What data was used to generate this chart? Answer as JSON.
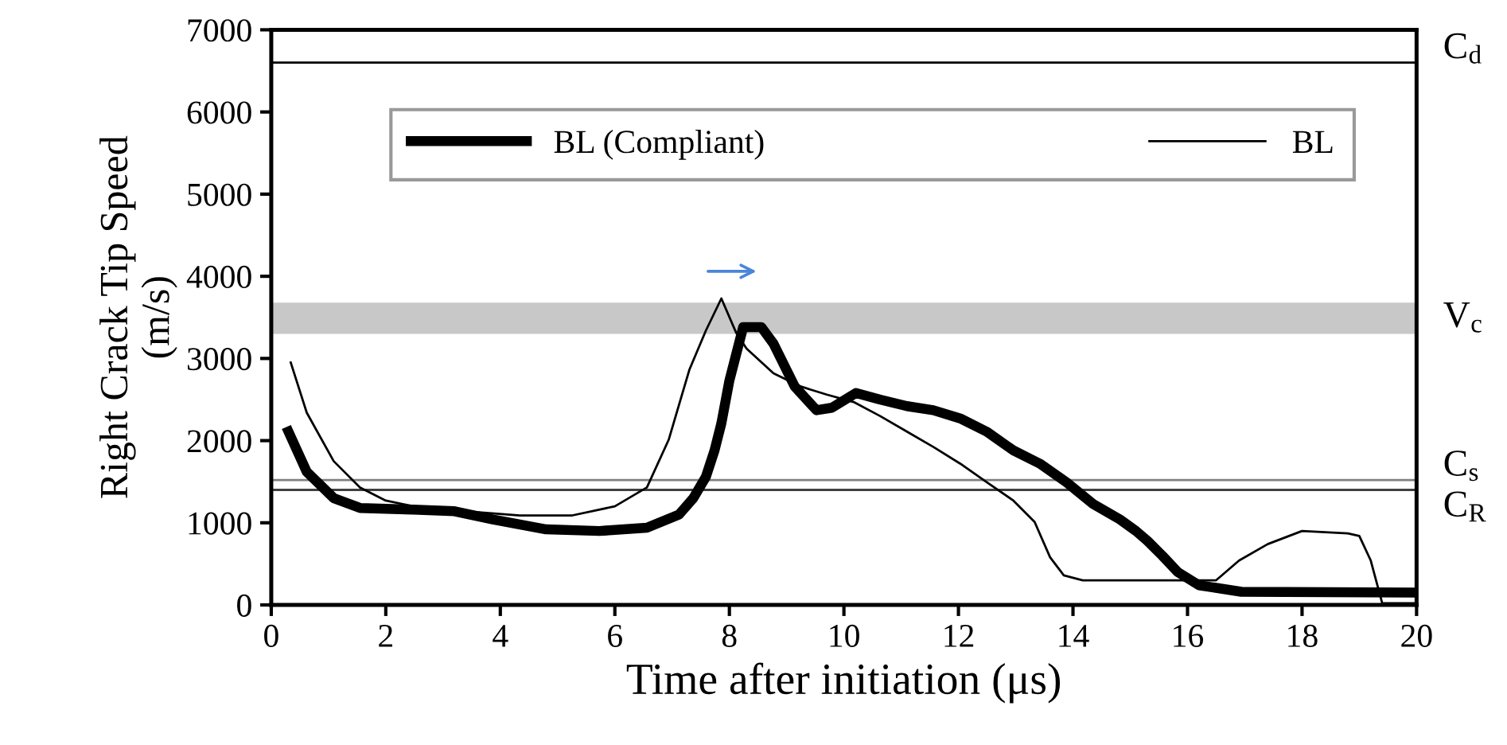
{
  "chart_data": {
    "type": "line",
    "xlabel": "Time after initiation (μs)",
    "ylabel": "Right Crack Tip Speed\n(m/s)",
    "xlim": [
      0,
      20
    ],
    "xticks": [
      0,
      2,
      4,
      6,
      8,
      10,
      12,
      14,
      16,
      18,
      20
    ],
    "ylim": [
      0,
      7000
    ],
    "yticks": [
      0,
      1000,
      2000,
      3000,
      4000,
      5000,
      6000,
      7000
    ],
    "grid": false,
    "legend": "top",
    "marker": "none",
    "series": [
      {
        "name": "BL (Compliant)",
        "color": "#000000",
        "x": [
          0.3,
          0.62,
          1.09,
          1.55,
          2.48,
          3.2,
          3.87,
          4.8,
          5.73,
          6.56,
          7.12,
          7.37,
          7.59,
          7.74,
          7.86,
          8.0,
          8.24,
          8.56,
          8.77,
          9.14,
          9.52,
          9.79,
          10.21,
          10.63,
          11.1,
          11.56,
          12.03,
          12.49,
          12.96,
          13.42,
          13.89,
          14.35,
          14.82,
          15.1,
          15.3,
          15.56,
          15.83,
          16.2,
          16.94,
          20
        ],
        "values": [
          2110,
          1620,
          1300,
          1180,
          1160,
          1140,
          1040,
          920,
          900,
          940,
          1100,
          1300,
          1560,
          1880,
          2210,
          2730,
          3380,
          3380,
          3180,
          2660,
          2370,
          2400,
          2580,
          2500,
          2420,
          2370,
          2270,
          2110,
          1880,
          1720,
          1490,
          1230,
          1040,
          900,
          780,
          600,
          400,
          240,
          160,
          150
        ]
      },
      {
        "name": "BL",
        "color": "#000000",
        "x": [
          0.34,
          0.62,
          1.09,
          1.55,
          2.0,
          2.48,
          3.4,
          4.34,
          5.26,
          6.0,
          6.56,
          6.94,
          7.3,
          7.59,
          7.86,
          8.12,
          8.3,
          8.77,
          9.24,
          9.7,
          10.17,
          10.63,
          11.1,
          11.57,
          12.03,
          12.5,
          12.96,
          13.33,
          13.6,
          13.84,
          14.17,
          15.3,
          16.5,
          16.9,
          17.4,
          18.0,
          18.8,
          19.0,
          19.2,
          19.4,
          20
        ],
        "values": [
          2950,
          2340,
          1750,
          1430,
          1270,
          1200,
          1140,
          1090,
          1090,
          1200,
          1430,
          2010,
          2860,
          3340,
          3730,
          3310,
          3120,
          2820,
          2660,
          2560,
          2470,
          2300,
          2110,
          1920,
          1720,
          1490,
          1270,
          1010,
          580,
          360,
          300,
          300,
          300,
          540,
          740,
          900,
          870,
          840,
          540,
          20,
          20
        ]
      }
    ],
    "ref_lines": [
      {
        "axis": "y",
        "value": 6600,
        "label": "C$_{d}$",
        "color": "#000000"
      },
      {
        "axis": "y",
        "value": 1520,
        "label": "C$_{s}$",
        "color": "#808080"
      },
      {
        "axis": "y",
        "value": 1400,
        "label": "C$_{R}$",
        "color": "#404040"
      }
    ],
    "bands": [
      {
        "axis": "y",
        "from": 3300,
        "to": 3680,
        "label": "V$_{c}$",
        "color": "#c8c8c8"
      }
    ]
  }
}
